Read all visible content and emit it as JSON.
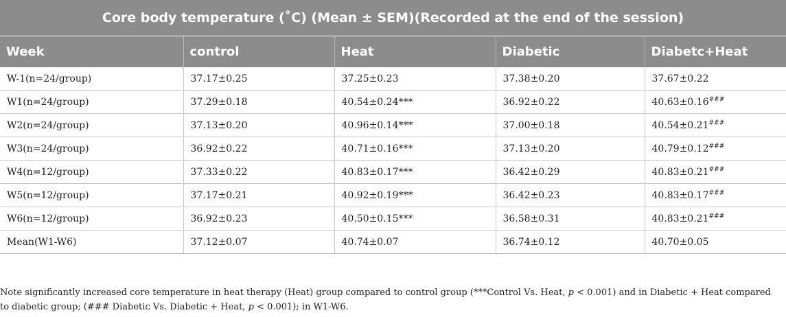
{
  "table": {
    "title": "Core body temperature (˚C) (Mean ± SEM)(Recorded at the end of the session)",
    "columns": [
      "Week",
      "control",
      "Heat",
      "Diabetic",
      "Diabetc+Heat"
    ],
    "rows": [
      {
        "week": "W-1(n=24/group)",
        "control": "37.17±0.25",
        "heat": "37.25±0.23",
        "diabetic": "37.38±0.20",
        "diabetic_heat": "37.67±0.22",
        "diabetic_heat_sig": ""
      },
      {
        "week": "W1(n=24/group)",
        "control": "37.29±0.18",
        "heat": "40.54±0.24***",
        "diabetic": "36.92±0.22",
        "diabetic_heat": "40.63±0.16",
        "diabetic_heat_sig": "###"
      },
      {
        "week": "W2(n=24/group)",
        "control": "37.13±0.20",
        "heat": "40.96±0.14***",
        "diabetic": "37.00±0.18",
        "diabetic_heat": "40.54±0.21",
        "diabetic_heat_sig": "###"
      },
      {
        "week": "W3(n=24/group)",
        "control": "36.92±0.22",
        "heat": "40.71±0.16***",
        "diabetic": "37.13±0.20",
        "diabetic_heat": "40.79±0.12",
        "diabetic_heat_sig": "###"
      },
      {
        "week": "W4(n=12/group)",
        "control": "37.33±0.22",
        "heat": "40.83±0.17***",
        "diabetic": "36.42±0.29",
        "diabetic_heat": "40.83±0.21",
        "diabetic_heat_sig": "###"
      },
      {
        "week": "W5(n=12/group)",
        "control": "37.17±0.21",
        "heat": "40.92±0.19***",
        "diabetic": "36.42±0.23",
        "diabetic_heat": "40.83±0.17",
        "diabetic_heat_sig": "###"
      },
      {
        "week": "W6(n=12/group)",
        "control": "36.92±0.23",
        "heat": "40.50±0.15***",
        "diabetic": "36.58±0.31",
        "diabetic_heat": "40.83±0.21",
        "diabetic_heat_sig": "###"
      },
      {
        "week": "Mean(W1-W6)",
        "control": "37.12±0.07",
        "heat": "40.74±0.07",
        "diabetic": "36.74±0.12",
        "diabetic_heat": "40.70±0.05",
        "diabetic_heat_sig": ""
      }
    ]
  },
  "note": {
    "part1": "Note significantly increased core temperature in heat therapy (Heat) group compared to control group (***Control Vs. Heat, ",
    "p1": "p",
    "part2": " < 0.001) and in Diabetic + Heat compared to diabetic group; (### Diabetic Vs. Diabetic + Heat, ",
    "p2": "p",
    "part3": " < 0.001); in W1-W6."
  }
}
